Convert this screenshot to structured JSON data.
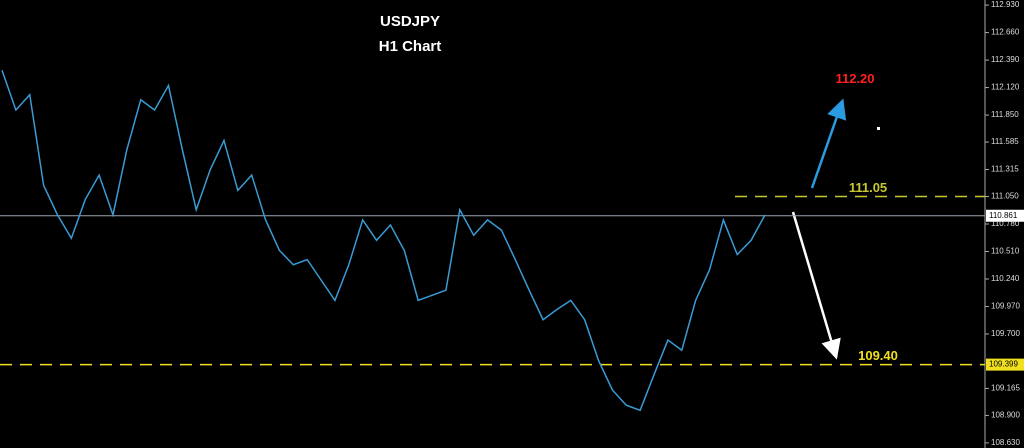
{
  "chart_data": {
    "type": "line",
    "title": "USDJPY",
    "subtitle": "H1 Chart",
    "color": "#3a9bd5",
    "values": [
      112.29,
      111.9,
      112.05,
      111.16,
      110.87,
      110.64,
      111.02,
      111.26,
      110.87,
      111.51,
      112.0,
      111.9,
      112.14,
      111.51,
      110.92,
      111.31,
      111.6,
      111.11,
      111.26,
      110.82,
      110.52,
      110.38,
      110.43,
      110.23,
      110.03,
      110.38,
      110.82,
      110.62,
      110.77,
      110.52,
      110.03,
      110.08,
      110.13,
      110.92,
      110.67,
      110.82,
      110.72,
      110.43,
      110.13,
      109.84,
      109.94,
      110.03,
      109.84,
      109.44,
      109.15,
      109.0,
      108.95,
      109.3,
      109.64,
      109.54,
      110.03,
      110.33,
      110.82,
      110.48,
      110.62,
      110.87
    ],
    "ylim": [
      108.58,
      112.98
    ],
    "yticks": [
      {
        "value": 112.93,
        "label": "112.930"
      },
      {
        "value": 112.66,
        "label": "112.660"
      },
      {
        "value": 112.39,
        "label": "112.390"
      },
      {
        "value": 112.12,
        "label": "112.120"
      },
      {
        "value": 111.85,
        "label": "111.850"
      },
      {
        "value": 111.585,
        "label": "111.585"
      },
      {
        "value": 111.315,
        "label": "111.315"
      },
      {
        "value": 111.05,
        "label": "111.050"
      },
      {
        "value": 110.78,
        "label": "110.780"
      },
      {
        "value": 110.51,
        "label": "110.510"
      },
      {
        "value": 110.24,
        "label": "110.240"
      },
      {
        "value": 109.97,
        "label": "109.970"
      },
      {
        "value": 109.7,
        "label": "109.700"
      },
      {
        "value": 109.165,
        "label": "109.165"
      },
      {
        "value": 108.9,
        "label": "108.900"
      },
      {
        "value": 108.63,
        "label": "108.630"
      }
    ],
    "current_price": {
      "value": 110.861,
      "label": "110.861"
    },
    "levels": [
      {
        "value": 111.05,
        "label": "111.05",
        "color": "#c8c832"
      },
      {
        "value": 109.399,
        "label": "109.40",
        "axis_label": "109.399",
        "color": "#f0e020"
      }
    ],
    "target": {
      "value": 112.2,
      "label": "112.20",
      "color": "#ff2020"
    }
  }
}
